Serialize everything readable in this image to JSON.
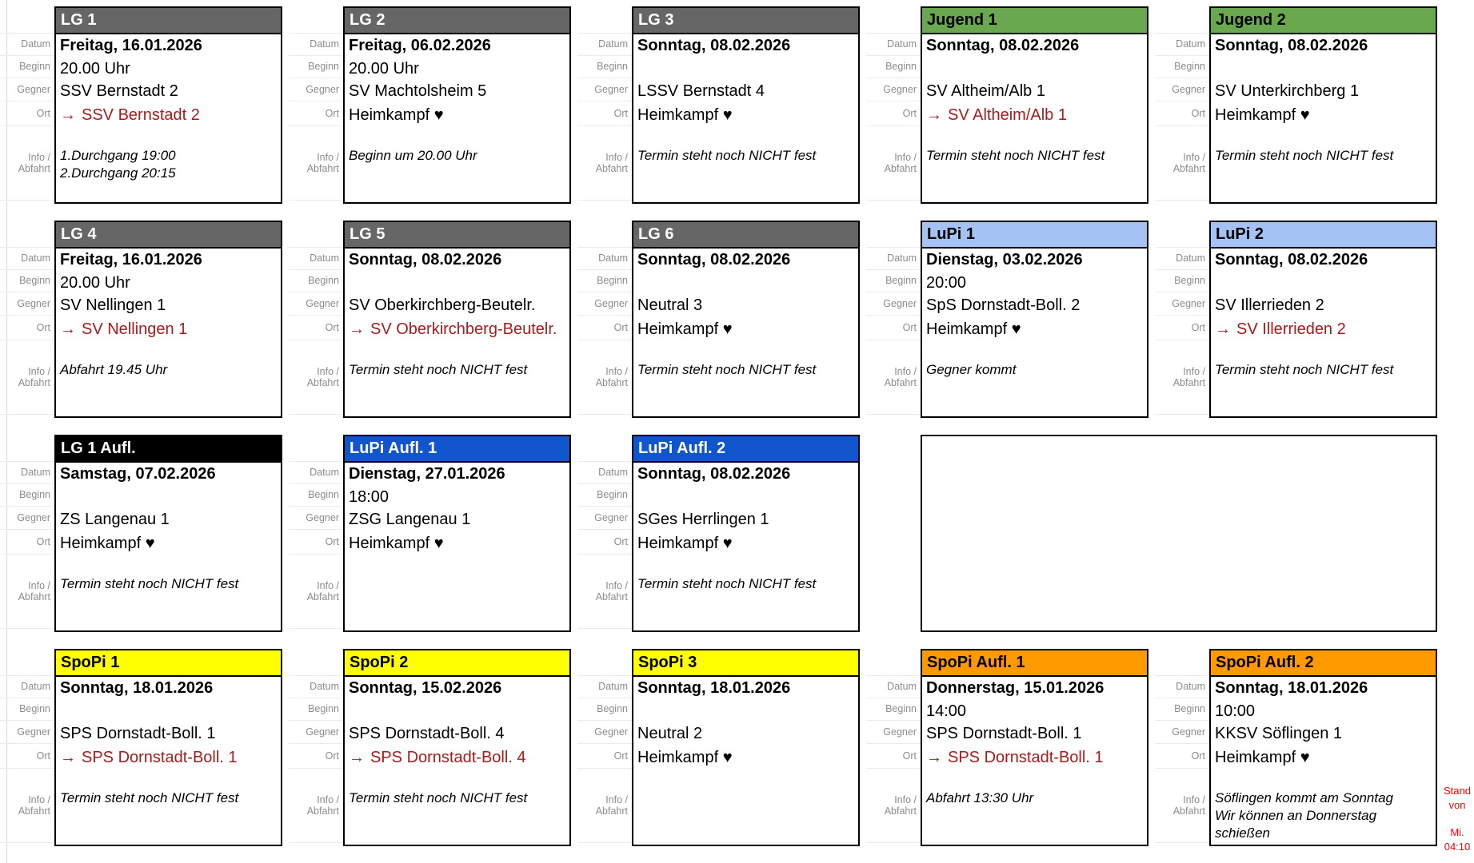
{
  "labels": {
    "datum": "Datum",
    "beginn": "Beginn",
    "gegner": "Gegner",
    "ort": "Ort",
    "info_line1": "Info /",
    "info_line2": "Abfahrt"
  },
  "icons": {
    "arrow_right": "→",
    "heart": "♥"
  },
  "colors": {
    "away_red": "#a61c1c",
    "stand_red": "#ff0000",
    "label_gray": "#8c8c8c",
    "card_border": "#000000"
  },
  "palette": {
    "gray": {
      "bg": "#666666",
      "fg": "#ffffff"
    },
    "green": {
      "bg": "#6aa84f",
      "fg": "#000000"
    },
    "lightblue": {
      "bg": "#a4c2f4",
      "fg": "#000000"
    },
    "blue": {
      "bg": "#1155cc",
      "fg": "#ffffff"
    },
    "black": {
      "bg": "#000000",
      "fg": "#ffffff"
    },
    "yellow": {
      "bg": "#ffff00",
      "fg": "#000000"
    },
    "orange": {
      "bg": "#ff9900",
      "fg": "#000000"
    }
  },
  "stand": {
    "word1": "Stand",
    "word2": "von",
    "word3": "Mi.",
    "word4": "04:10"
  },
  "cards": [
    {
      "id": "lg1",
      "row": 1,
      "col": 1,
      "color": "gray",
      "title": "LG 1",
      "datum": "Freitag, 16.01.2026",
      "beginn": "20.00 Uhr",
      "gegner": "SSV Bernstadt 2",
      "ort_arrow": true,
      "ort_text": "SSV Bernstadt 2",
      "info": [
        "1.Durchgang 19:00",
        "2.Durchgang 20:15"
      ]
    },
    {
      "id": "lg2",
      "row": 1,
      "col": 2,
      "color": "gray",
      "title": "LG 2",
      "datum": "Freitag, 06.02.2026",
      "beginn": "20.00 Uhr",
      "gegner": "SV Machtolsheim 5",
      "ort_arrow": false,
      "ort_text": "Heimkampf ♥",
      "info": [
        "Beginn um 20.00 Uhr"
      ]
    },
    {
      "id": "lg3",
      "row": 1,
      "col": 3,
      "color": "gray",
      "title": "LG 3",
      "datum": "Sonntag, 08.02.2026",
      "beginn": "",
      "gegner": "LSSV Bernstadt 4",
      "ort_arrow": false,
      "ort_text": "Heimkampf ♥",
      "info": [
        "Termin steht noch NICHT fest"
      ]
    },
    {
      "id": "jugend1",
      "row": 1,
      "col": 4,
      "color": "green",
      "title": "Jugend 1",
      "datum": "Sonntag, 08.02.2026",
      "beginn": "",
      "gegner": "SV Altheim/Alb 1",
      "ort_arrow": true,
      "ort_text": "SV Altheim/Alb 1",
      "info": [
        "Termin steht noch NICHT fest"
      ]
    },
    {
      "id": "jugend2",
      "row": 1,
      "col": 5,
      "color": "green",
      "title": "Jugend 2",
      "datum": "Sonntag, 08.02.2026",
      "beginn": "",
      "gegner": "SV Unterkirchberg 1",
      "ort_arrow": false,
      "ort_text": "Heimkampf ♥",
      "info": [
        "Termin steht noch NICHT fest"
      ]
    },
    {
      "id": "lg4",
      "row": 2,
      "col": 1,
      "color": "gray",
      "title": "LG 4",
      "datum": "Freitag, 16.01.2026",
      "beginn": "20.00 Uhr",
      "gegner": "SV Nellingen 1",
      "ort_arrow": true,
      "ort_text": "SV Nellingen 1",
      "info": [
        "Abfahrt 19.45 Uhr"
      ]
    },
    {
      "id": "lg5",
      "row": 2,
      "col": 2,
      "color": "gray",
      "title": "LG 5",
      "datum": "Sonntag, 08.02.2026",
      "beginn": "",
      "gegner": "SV Oberkirchberg-Beutelr.",
      "ort_arrow": true,
      "ort_text": "SV Oberkirchberg-Beutelr.",
      "info": [
        "Termin steht noch NICHT fest"
      ]
    },
    {
      "id": "lg6",
      "row": 2,
      "col": 3,
      "color": "gray",
      "title": "LG 6",
      "datum": "Sonntag, 08.02.2026",
      "beginn": "",
      "gegner": "Neutral 3",
      "ort_arrow": false,
      "ort_text": "Heimkampf ♥",
      "info": [
        "Termin steht noch NICHT fest"
      ]
    },
    {
      "id": "lupi1",
      "row": 2,
      "col": 4,
      "color": "lightblue",
      "title": "LuPi 1",
      "datum": "Dienstag, 03.02.2026",
      "beginn": "20:00",
      "gegner": "SpS Dornstadt-Boll. 2",
      "ort_arrow": false,
      "ort_text": "Heimkampf ♥",
      "info": [
        "Gegner kommt"
      ]
    },
    {
      "id": "lupi2",
      "row": 2,
      "col": 5,
      "color": "lightblue",
      "title": "LuPi 2",
      "datum": "Sonntag, 08.02.2026",
      "beginn": "",
      "gegner": "SV Illerrieden 2",
      "ort_arrow": true,
      "ort_text": "SV Illerrieden 2",
      "info": [
        "Termin steht noch NICHT fest"
      ]
    },
    {
      "id": "lg1aufl",
      "row": 3,
      "col": 1,
      "color": "black",
      "title": "LG 1 Aufl.",
      "datum": "Samstag, 07.02.2026",
      "beginn": "",
      "gegner": "ZS Langenau 1",
      "ort_arrow": false,
      "ort_text": "Heimkampf ♥",
      "info": [
        "Termin steht noch NICHT fest"
      ]
    },
    {
      "id": "lupiaufl1",
      "row": 3,
      "col": 2,
      "color": "blue",
      "title": "LuPi Aufl. 1",
      "datum": "Dienstag, 27.01.2026",
      "beginn": "18:00",
      "gegner": "ZSG Langenau 1",
      "ort_arrow": false,
      "ort_text": "Heimkampf ♥",
      "info": []
    },
    {
      "id": "lupiaufl2",
      "row": 3,
      "col": 3,
      "color": "blue",
      "title": "LuPi Aufl. 2",
      "datum": "Sonntag, 08.02.2026",
      "beginn": "",
      "gegner": "SGes Herrlingen 1",
      "ort_arrow": false,
      "ort_text": "Heimkampf ♥",
      "info": [
        "Termin steht noch NICHT fest"
      ]
    },
    {
      "id": "spopi1",
      "row": 4,
      "col": 1,
      "color": "yellow",
      "title": "SpoPi 1",
      "datum": "Sonntag, 18.01.2026",
      "beginn": "",
      "gegner": "SPS Dornstadt-Boll. 1",
      "ort_arrow": true,
      "ort_text": "SPS Dornstadt-Boll. 1",
      "info": [
        "Termin steht noch NICHT fest"
      ]
    },
    {
      "id": "spopi2",
      "row": 4,
      "col": 2,
      "color": "yellow",
      "title": "SpoPi 2",
      "datum": "Sonntag, 15.02.2026",
      "beginn": "",
      "gegner": "SPS Dornstadt-Boll. 4",
      "ort_arrow": true,
      "ort_text": "SPS Dornstadt-Boll. 4",
      "info": [
        "Termin steht noch NICHT fest"
      ]
    },
    {
      "id": "spopi3",
      "row": 4,
      "col": 3,
      "color": "yellow",
      "title": "SpoPi 3",
      "datum": "Sonntag, 18.01.2026",
      "beginn": "",
      "gegner": "Neutral 2",
      "ort_arrow": false,
      "ort_text": "Heimkampf ♥",
      "info": []
    },
    {
      "id": "spopiaufl1",
      "row": 4,
      "col": 4,
      "color": "orange",
      "title": "SpoPi Aufl. 1",
      "datum": "Donnerstag, 15.01.2026",
      "beginn": "14:00",
      "gegner": "SPS Dornstadt-Boll. 1",
      "ort_arrow": true,
      "ort_text": "SPS Dornstadt-Boll. 1",
      "info": [
        "Abfahrt 13:30 Uhr"
      ]
    },
    {
      "id": "spopiaufl2",
      "row": 4,
      "col": 5,
      "color": "orange",
      "title": "SpoPi Aufl. 2",
      "datum": "Sonntag, 18.01.2026",
      "beginn": "10:00",
      "gegner": "KKSV Söflingen 1",
      "ort_arrow": false,
      "ort_text": "Heimkampf ♥",
      "info": [
        "Söflingen kommt am Sonntag",
        "Wir können an Donnerstag",
        "schießen"
      ]
    }
  ]
}
